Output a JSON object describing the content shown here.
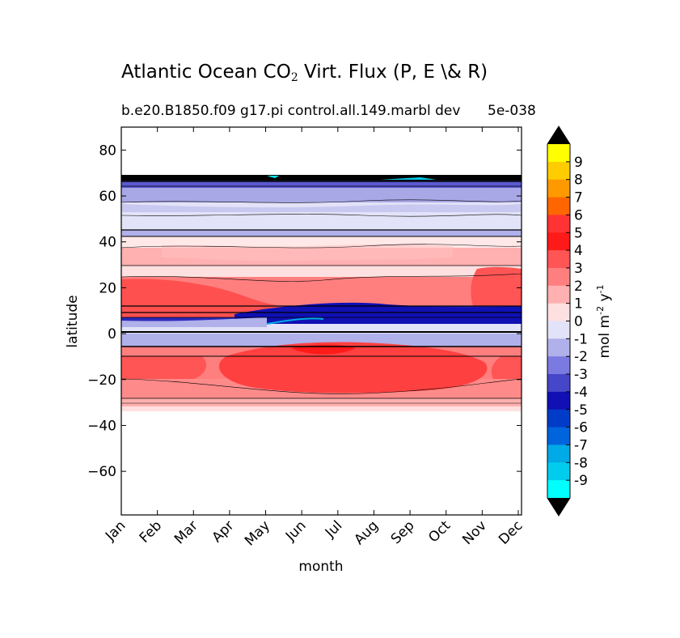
{
  "title_main": "Atlantic Ocean CO",
  "title_sub": "2",
  "title_rest": " Virt. Flux (P, E \\& R)",
  "subtitle": "b.e20.B1850.f09 g17.pi control.all.149.marbl dev",
  "exponent": "5e-038",
  "chart_data": {
    "type": "heatmap",
    "xlabel": "month",
    "ylabel": "latitude",
    "x_ticks": [
      "Jan",
      "Feb",
      "Mar",
      "Apr",
      "May",
      "Jun",
      "Jul",
      "Aug",
      "Sep",
      "Oct",
      "Nov",
      "Dec"
    ],
    "y_ticks": [
      80,
      60,
      40,
      20,
      0,
      -20,
      -40,
      -60
    ],
    "ylim": [
      -79,
      90
    ],
    "colorbar": {
      "label": "mol m",
      "label_sup": "-2",
      "label_mid": "  y",
      "label_sup2": "-1",
      "levels": [
        "9",
        "8",
        "7",
        "6",
        "5",
        "4",
        "3",
        "2",
        "1",
        "0",
        "-1",
        "-2",
        "-3",
        "-4",
        "-5",
        "-6",
        "-7",
        "-8",
        "-9"
      ],
      "colors": [
        "#ffff00",
        "#ffcc00",
        "#ff9900",
        "#ff6600",
        "#ff3333",
        "#ff1a1a",
        "#ff5555",
        "#ff7f7f",
        "#ffb0b0",
        "#ffe0e0",
        "#e2e2f8",
        "#b0b0ea",
        "#7a7ae0",
        "#4646c8",
        "#1010b4",
        "#003cc8",
        "#0064dc",
        "#00aae6",
        "#00ccee",
        "#00ffff"
      ],
      "extend_color": "#000000"
    },
    "lat_bands": [
      {
        "lat_top": 68,
        "lat_bottom": 66,
        "level": "-9 black band"
      },
      {
        "lat_top": 66,
        "lat_bottom": 60,
        "value": -2
      },
      {
        "lat_top": 60,
        "lat_bottom": 56,
        "value": -2
      },
      {
        "lat_top": 56,
        "lat_bottom": 46,
        "value": -1
      },
      {
        "lat_top": 46,
        "lat_bottom": 43,
        "value": -2
      },
      {
        "lat_top": 43,
        "lat_bottom": 37,
        "value": 0
      },
      {
        "lat_top": 37,
        "lat_bottom": 30,
        "value": 1
      },
      {
        "lat_top": 30,
        "lat_bottom": 24,
        "value": 0
      },
      {
        "lat_top": 24,
        "lat_bottom": 10,
        "value": 2
      },
      {
        "lat_top": 10,
        "lat_bottom": 1,
        "value": -4
      },
      {
        "lat_top": 1,
        "lat_bottom": -5,
        "value": -1
      },
      {
        "lat_top": -5,
        "lat_bottom": -14,
        "value": 3
      },
      {
        "lat_top": -14,
        "lat_bottom": -26,
        "value": 3
      },
      {
        "lat_top": -26,
        "lat_bottom": -31,
        "value": 2
      },
      {
        "lat_top": -31,
        "lat_bottom": -34,
        "value": 0
      }
    ]
  }
}
